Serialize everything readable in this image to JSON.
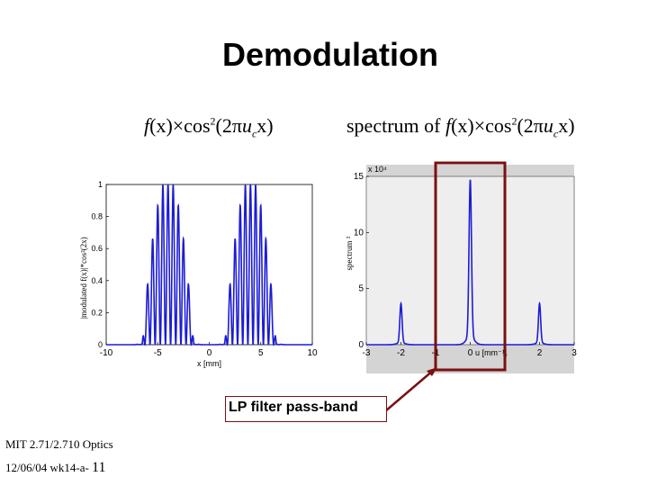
{
  "slide": {
    "title": "Demodulation",
    "caption": "LP filter pass-band",
    "footer_course": "MIT 2.71/2.710 Optics",
    "footer_date": "12/06/04 wk14-a-",
    "slide_number": "11"
  },
  "equations": {
    "left": {
      "f": "f",
      "x": "(x)×cos",
      "exp": "2",
      "arg_open": "(2π",
      "u": "u",
      "sub": "c",
      "arg_close": "x)"
    },
    "right": {
      "prefix": "spectrum of ",
      "f": "f",
      "x": "(x)×cos",
      "exp": "2",
      "arg_open": "(2π",
      "u": "u",
      "sub": "c",
      "arg_close": "x)"
    }
  },
  "colors": {
    "curve": "#1c1cd6",
    "highlight": "#7a1010",
    "plot_bg": "#d4d4d4"
  },
  "chart_data": [
    {
      "type": "line",
      "title": "",
      "xlabel": "x [mm]",
      "ylabel": "|modulated f(x)|*cos²(2x)",
      "xlim": [
        -10,
        10
      ],
      "ylim": [
        0,
        1
      ],
      "xticks": [
        "-10",
        "-5",
        "0",
        "5",
        "10"
      ],
      "yticks": [
        "0",
        "0.2",
        "0.4",
        "0.6",
        "0.8",
        "1"
      ],
      "series": [
        {
          "envelope_lobes": [
            {
              "center": -4.0,
              "half_width": 2.5,
              "peak": 1.0
            },
            {
              "center": 4.0,
              "half_width": 2.5,
              "peak": 1.0
            }
          ],
          "carrier_period_mm": 0.5
        }
      ]
    },
    {
      "type": "line",
      "title": "",
      "xlabel": "u [mm⁻¹]",
      "ylabel": "spectrum ²",
      "y_scale_label": "x 10⁴",
      "xlim": [
        -3,
        3
      ],
      "ylim": [
        0,
        15
      ],
      "xticks": [
        "-3",
        "-2",
        "-1",
        "0",
        "1",
        "2",
        "3"
      ],
      "yticks": [
        "0",
        "5",
        "10",
        "15"
      ],
      "series": [
        {
          "peaks": [
            {
              "u": -2.0,
              "height": 3.5
            },
            {
              "u": 0.0,
              "height": 14.0
            },
            {
              "u": 2.0,
              "height": 3.5
            }
          ]
        }
      ]
    }
  ]
}
